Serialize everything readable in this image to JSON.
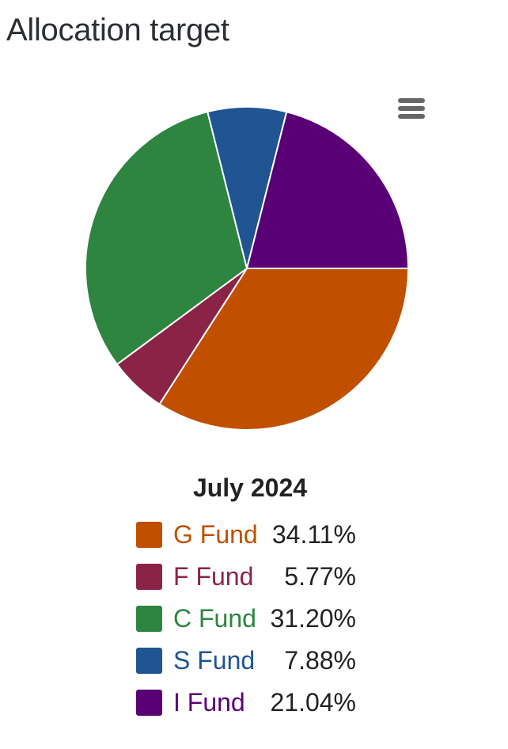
{
  "header": {
    "title": "Allocation target"
  },
  "menu": {
    "icon": "hamburger-menu-icon"
  },
  "chart_data": {
    "type": "pie",
    "title": "July 2024",
    "categories": [
      "G Fund",
      "F Fund",
      "C Fund",
      "S Fund",
      "I Fund"
    ],
    "values": [
      34.11,
      5.77,
      31.2,
      7.88,
      21.04
    ],
    "value_labels": [
      "34.11%",
      "5.77%",
      "31.20%",
      "7.88%",
      "21.04%"
    ],
    "colors": [
      "#C05000",
      "#8B2346",
      "#2E8540",
      "#205493",
      "#5A0077"
    ],
    "start_angle": "3 o'clock",
    "direction": "clockwise",
    "slice_border_color": "#ffffff",
    "legend_position": "bottom-center"
  }
}
